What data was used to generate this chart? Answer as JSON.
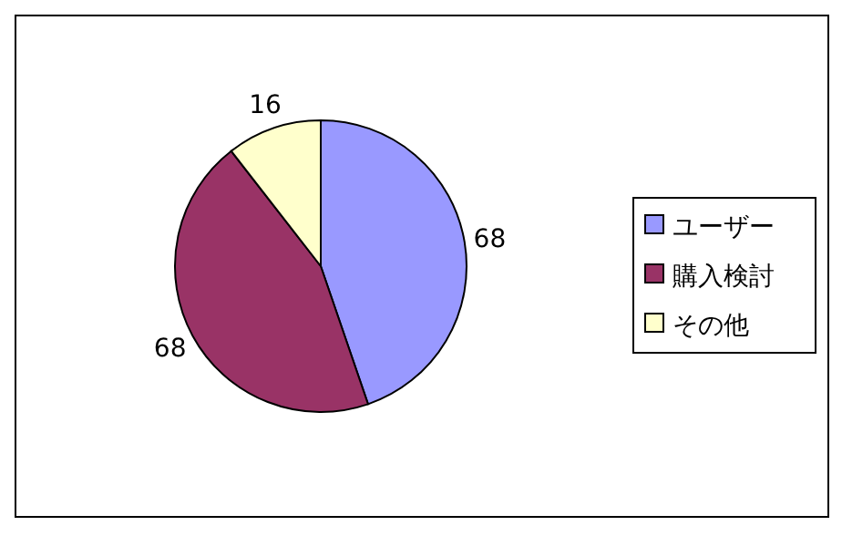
{
  "chart_data": {
    "type": "pie",
    "categories": [
      "ユーザー",
      "購入検討",
      "その他"
    ],
    "values": [
      68,
      68,
      16
    ],
    "colors": [
      "#9999ff",
      "#993366",
      "#ffffcc"
    ],
    "data_labels": true,
    "legend": "right"
  }
}
